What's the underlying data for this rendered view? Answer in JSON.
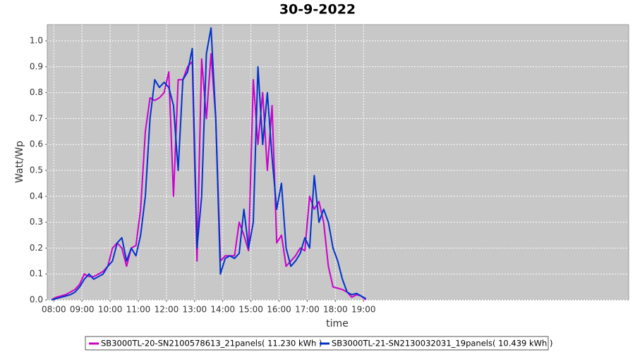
{
  "chart_data": {
    "type": "line",
    "title": "30-9-2022",
    "x_label": "time",
    "y_label": "Watt/Wp",
    "x": [
      475,
      485,
      495,
      505,
      515,
      525,
      535,
      545,
      555,
      565,
      575,
      585,
      595,
      605,
      615,
      625,
      635,
      645,
      655,
      665,
      675,
      685,
      695,
      705,
      715,
      725,
      735,
      745,
      755,
      765,
      775,
      785,
      795,
      805,
      815,
      825,
      835,
      845,
      855,
      865,
      875,
      885,
      895,
      905,
      915,
      925,
      935,
      945,
      955,
      965,
      975,
      985,
      995,
      1005,
      1015,
      1025,
      1035,
      1045,
      1055,
      1065,
      1075,
      1085,
      1095,
      1105,
      1115,
      1125,
      1135,
      1145
    ],
    "series": [
      {
        "name": "SB3000TL-20-SN2100578613_21panels( 11.230 kWh )",
        "color": "#cc00cc",
        "values": [
          0,
          0.01,
          0.015,
          0.02,
          0.03,
          0.04,
          0.06,
          0.1,
          0.09,
          0.09,
          0.1,
          0.11,
          0.13,
          0.2,
          0.22,
          0.2,
          0.13,
          0.2,
          0.21,
          0.35,
          0.65,
          0.78,
          0.77,
          0.78,
          0.8,
          0.88,
          0.4,
          0.85,
          0.85,
          0.9,
          0.92,
          0.15,
          0.93,
          0.7,
          0.95,
          0.7,
          0.15,
          0.17,
          0.17,
          0.17,
          0.3,
          0.25,
          0.19,
          0.85,
          0.6,
          0.8,
          0.5,
          0.75,
          0.22,
          0.25,
          0.13,
          0.15,
          0.17,
          0.2,
          0.19,
          0.4,
          0.35,
          0.38,
          0.3,
          0.13,
          0.05,
          0.045,
          0.04,
          0.03,
          0.01,
          0.02,
          0.015,
          0
        ]
      },
      {
        "name": "SB3000TL-21-SN2130032031_19panels( 10.439 kWh )",
        "color": "#0033cc",
        "values": [
          0,
          0.005,
          0.01,
          0.015,
          0.02,
          0.03,
          0.05,
          0.08,
          0.1,
          0.08,
          0.09,
          0.1,
          0.13,
          0.15,
          0.22,
          0.24,
          0.15,
          0.2,
          0.17,
          0.25,
          0.4,
          0.7,
          0.85,
          0.82,
          0.84,
          0.82,
          0.75,
          0.5,
          0.85,
          0.88,
          0.97,
          0.2,
          0.4,
          0.95,
          1.05,
          0.7,
          0.1,
          0.16,
          0.17,
          0.16,
          0.18,
          0.35,
          0.2,
          0.3,
          0.9,
          0.6,
          0.8,
          0.55,
          0.35,
          0.45,
          0.2,
          0.13,
          0.15,
          0.18,
          0.24,
          0.2,
          0.48,
          0.3,
          0.35,
          0.3,
          0.2,
          0.15,
          0.08,
          0.03,
          0.02,
          0.025,
          0.015,
          0.005
        ]
      }
    ],
    "xlim": [
      466,
      1705
    ],
    "xticks": [
      {
        "value": 480,
        "label": "08:00"
      },
      {
        "value": 540,
        "label": "09:00"
      },
      {
        "value": 600,
        "label": "10:00"
      },
      {
        "value": 660,
        "label": "11:00"
      },
      {
        "value": 720,
        "label": "12:00"
      },
      {
        "value": 780,
        "label": "13:00"
      },
      {
        "value": 840,
        "label": "14:00"
      },
      {
        "value": 900,
        "label": "15:00"
      },
      {
        "value": 960,
        "label": "16:00"
      },
      {
        "value": 1020,
        "label": "17:00"
      },
      {
        "value": 1080,
        "label": "18:00"
      },
      {
        "value": 1140,
        "label": "19:00"
      }
    ],
    "ylim": [
      0,
      1.0625
    ],
    "yticks": [
      {
        "value": 0,
        "label": "0.0"
      },
      {
        "value": 0.1,
        "label": "0.1"
      },
      {
        "value": 0.2,
        "label": "0.2"
      },
      {
        "value": 0.3,
        "label": "0.3"
      },
      {
        "value": 0.4,
        "label": "0.4"
      },
      {
        "value": 0.5,
        "label": "0.5"
      },
      {
        "value": 0.6,
        "label": "0.6"
      },
      {
        "value": 0.7,
        "label": "0.7"
      },
      {
        "value": 0.8,
        "label": "0.8"
      },
      {
        "value": 0.9,
        "label": "0.9"
      },
      {
        "value": 1,
        "label": "1.0"
      }
    ],
    "grid": true,
    "legend": "bottom"
  }
}
